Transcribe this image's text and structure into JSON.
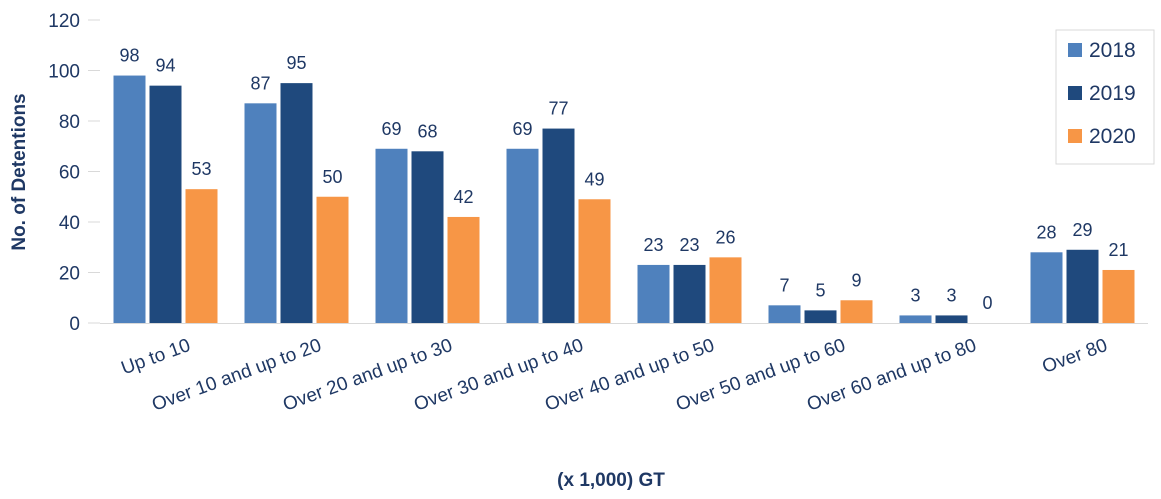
{
  "chart_data": {
    "type": "bar",
    "title": "",
    "xlabel": "(x 1,000) GT",
    "ylabel": "No. of Detentions",
    "ylim": [
      0,
      120
    ],
    "yticks": [
      0,
      20,
      40,
      60,
      80,
      100,
      120
    ],
    "grid": false,
    "legend_position": "top-right",
    "categories": [
      "Up to 10",
      "Over 10 and up to 20",
      "Over 20 and up to 30",
      "Over 30 and up to 40",
      "Over 40 and up to 50",
      "Over 50 and up to 60",
      "Over 60 and up to 80",
      "Over 80"
    ],
    "series": [
      {
        "name": "2018",
        "color": "#4F81BD",
        "values": [
          98,
          87,
          69,
          69,
          23,
          7,
          3,
          28
        ]
      },
      {
        "name": "2019",
        "color": "#1F497D",
        "values": [
          94,
          95,
          68,
          77,
          23,
          5,
          3,
          29
        ]
      },
      {
        "name": "2020",
        "color": "#F79646",
        "values": [
          53,
          50,
          42,
          49,
          26,
          9,
          0,
          21
        ]
      }
    ]
  }
}
